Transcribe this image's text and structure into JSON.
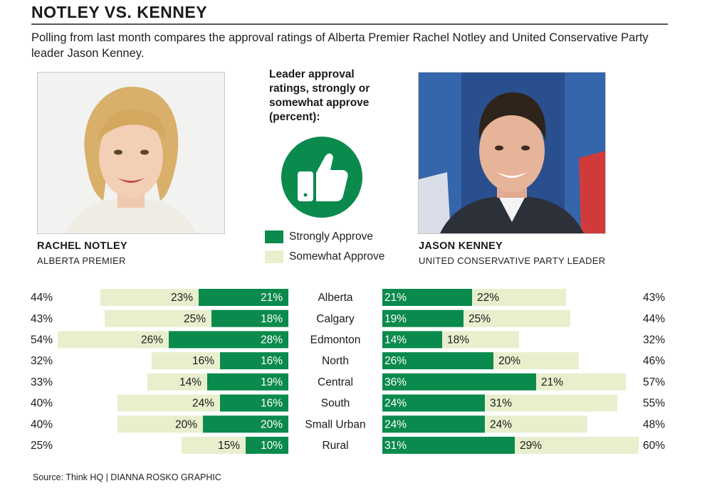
{
  "header": {
    "title": "NOTLEY VS. KENNEY",
    "subtitle": "Polling from last month compares the approval ratings of Alberta Premier Rachel Notley and United Conservative Party leader Jason Kenney."
  },
  "left_person": {
    "name": "RACHEL NOTLEY",
    "role": "ALBERTA PREMIER"
  },
  "right_person": {
    "name": "JASON KENNEY",
    "role": "UNITED CONSERVATIVE PARTY LEADER"
  },
  "center": {
    "caption": "Leader approval ratings, strongly or somewhat approve (percent):",
    "icon": "thumbs-up-icon"
  },
  "footer": {
    "source": "Source: Think HQ  |  DIANNA ROSKO GRAPHIC"
  },
  "colors": {
    "strong": "#0a8a4c",
    "somewhat": "#e8efcd",
    "icon": "#0a8a4c"
  },
  "chart_data": {
    "type": "bar",
    "orientation": "horizontal",
    "layout": "back-to-back stacked",
    "categories": [
      "Alberta",
      "Calgary",
      "Edmonton",
      "North",
      "Central",
      "South",
      "Small Urban",
      "Rural"
    ],
    "legend": [
      "Strongly Approve",
      "Somewhat Approve"
    ],
    "notley": {
      "strongly": [
        21,
        18,
        28,
        16,
        19,
        16,
        20,
        10
      ],
      "somewhat": [
        23,
        25,
        26,
        16,
        14,
        24,
        20,
        15
      ],
      "total": [
        44,
        43,
        54,
        32,
        33,
        40,
        40,
        25
      ]
    },
    "kenney": {
      "strongly": [
        21,
        19,
        14,
        26,
        36,
        24,
        24,
        31
      ],
      "somewhat": [
        22,
        25,
        18,
        20,
        21,
        31,
        24,
        29
      ],
      "total": [
        43,
        44,
        32,
        46,
        57,
        55,
        48,
        60
      ]
    }
  }
}
